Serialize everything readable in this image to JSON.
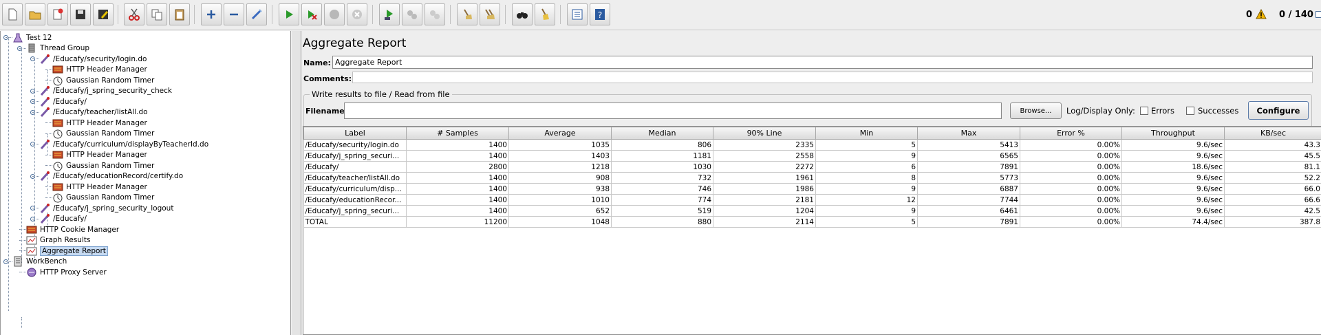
{
  "status": {
    "warnings": "0",
    "threads": "0 / 140"
  },
  "tree": {
    "nodes": [
      {
        "label": "Test 12",
        "icon": "test-plan-icon"
      },
      {
        "label": "Thread Group",
        "icon": "thread-group-icon"
      },
      {
        "label": "/Educafy/security/login.do",
        "icon": "sampler-icon"
      },
      {
        "label": "HTTP Header Manager",
        "icon": "config-icon"
      },
      {
        "label": "Gaussian Random Timer",
        "icon": "timer-icon"
      },
      {
        "label": "/Educafy/j_spring_security_check",
        "icon": "sampler-icon"
      },
      {
        "label": "/Educafy/",
        "icon": "sampler-icon"
      },
      {
        "label": "/Educafy/teacher/listAll.do",
        "icon": "sampler-icon"
      },
      {
        "label": "HTTP Header Manager",
        "icon": "config-icon"
      },
      {
        "label": "Gaussian Random Timer",
        "icon": "timer-icon"
      },
      {
        "label": "/Educafy/curriculum/displayByTeacherId.do",
        "icon": "sampler-icon"
      },
      {
        "label": "HTTP Header Manager",
        "icon": "config-icon"
      },
      {
        "label": "Gaussian Random Timer",
        "icon": "timer-icon"
      },
      {
        "label": "/Educafy/educationRecord/certify.do",
        "icon": "sampler-icon"
      },
      {
        "label": "HTTP Header Manager",
        "icon": "config-icon"
      },
      {
        "label": "Gaussian Random Timer",
        "icon": "timer-icon"
      },
      {
        "label": "/Educafy/j_spring_security_logout",
        "icon": "sampler-icon"
      },
      {
        "label": "/Educafy/",
        "icon": "sampler-icon"
      },
      {
        "label": "HTTP Cookie Manager",
        "icon": "config-icon"
      },
      {
        "label": "Graph Results",
        "icon": "listener-icon"
      },
      {
        "label": "Aggregate Report",
        "icon": "listener-icon"
      },
      {
        "label": "WorkBench",
        "icon": "workbench-icon"
      },
      {
        "label": "HTTP Proxy Server",
        "icon": "proxy-icon"
      }
    ]
  },
  "panel": {
    "title": "Aggregate Report",
    "name_label": "Name:",
    "name_value": "Aggregate Report",
    "comments_label": "Comments:",
    "file_legend": "Write results to file / Read from file",
    "filename_label": "Filename",
    "browse": "Browse...",
    "log_display": "Log/Display Only:",
    "errors": "Errors",
    "successes": "Successes",
    "configure": "Configure"
  },
  "table": {
    "headers": [
      "Label",
      "# Samples",
      "Average",
      "Median",
      "90% Line",
      "Min",
      "Max",
      "Error %",
      "Throughput",
      "KB/sec"
    ],
    "rows": [
      [
        "/Educafy/security/login.do",
        "1400",
        "1035",
        "806",
        "2335",
        "5",
        "5413",
        "0.00%",
        "9.6/sec",
        "43.3"
      ],
      [
        "/Educafy/j_spring_securi...",
        "1400",
        "1403",
        "1181",
        "2558",
        "9",
        "6565",
        "0.00%",
        "9.6/sec",
        "45.5"
      ],
      [
        "/Educafy/",
        "2800",
        "1218",
        "1030",
        "2272",
        "6",
        "7891",
        "0.00%",
        "18.6/sec",
        "81.1"
      ],
      [
        "/Educafy/teacher/listAll.do",
        "1400",
        "908",
        "732",
        "1961",
        "8",
        "5773",
        "0.00%",
        "9.6/sec",
        "52.2"
      ],
      [
        "/Educafy/curriculum/disp...",
        "1400",
        "938",
        "746",
        "1986",
        "9",
        "6887",
        "0.00%",
        "9.6/sec",
        "66.0"
      ],
      [
        "/Educafy/educationRecor...",
        "1400",
        "1010",
        "774",
        "2181",
        "12",
        "7744",
        "0.00%",
        "9.6/sec",
        "66.6"
      ],
      [
        "/Educafy/j_spring_securi...",
        "1400",
        "652",
        "519",
        "1204",
        "9",
        "6461",
        "0.00%",
        "9.6/sec",
        "42.5"
      ],
      [
        "TOTAL",
        "11200",
        "1048",
        "880",
        "2114",
        "5",
        "7891",
        "0.00%",
        "74.4/sec",
        "387.8"
      ]
    ]
  }
}
